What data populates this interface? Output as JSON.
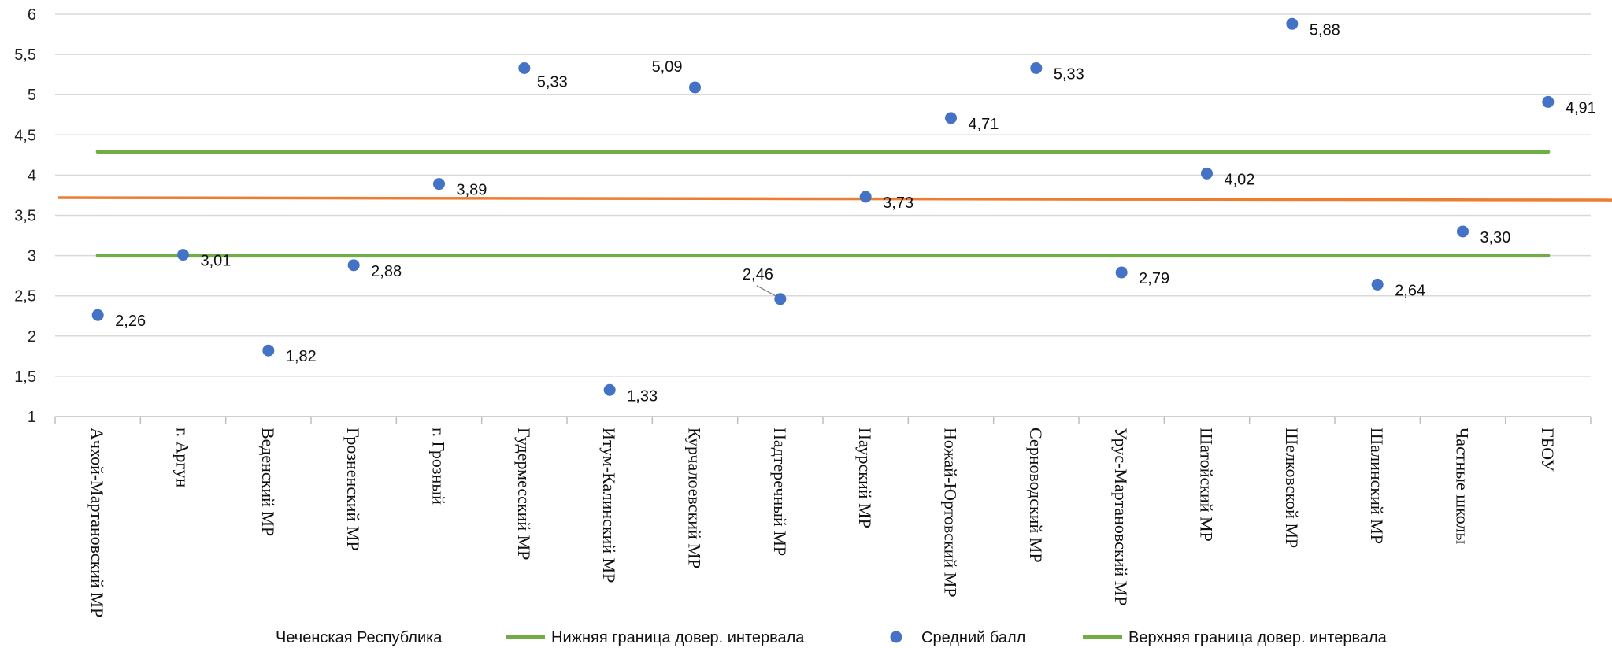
{
  "chart_data": {
    "type": "scatter",
    "categories": [
      "Ачхой-Мартановский МР",
      "г. Аргун",
      "Веденский МР",
      "Грозненский МР",
      "г. Грозный",
      "Гудермесский МР",
      "Итум-Калинский МР",
      "Курчалоевский МР",
      "Надтеречный МР",
      "Наурский МР",
      "Ножай-Юртовский МР",
      "Серноводский МР",
      "Урус-Мартановский МР",
      "Шатойский МР",
      "Шелковской МР",
      "Шалинский МР",
      "Частные школы",
      "ГБОУ"
    ],
    "series": [
      {
        "name": "Средний балл",
        "type": "scatter",
        "color": "#4472C4",
        "values": [
          2.26,
          3.01,
          1.82,
          2.88,
          3.89,
          5.33,
          1.33,
          5.09,
          2.46,
          3.73,
          4.71,
          5.33,
          2.79,
          4.02,
          5.88,
          2.64,
          3.3,
          4.91
        ],
        "labels": [
          "2,26",
          "3,01",
          "1,82",
          "2,88",
          "3,89",
          "5,33",
          "1,33",
          "5,09",
          "2,46",
          "3,73",
          "4,71",
          "5,33",
          "2,79",
          "4,02",
          "5,88",
          "2,64",
          "3,30",
          "4,91"
        ]
      },
      {
        "name": "Нижняя граница довер. интервала",
        "type": "line",
        "color": "#70AD47",
        "value": 3.0
      },
      {
        "name": "Верхняя граница довер. интервала",
        "type": "line",
        "color": "#70AD47",
        "value": 4.29
      },
      {
        "name": "Чеченская Республика",
        "type": "line",
        "color": "#ED7D31",
        "start_value": 3.72,
        "end_value": 3.69
      }
    ],
    "y_ticks": [
      "1",
      "1,5",
      "2",
      "2,5",
      "3",
      "3,5",
      "4",
      "4,5",
      "5",
      "5,5",
      "6"
    ],
    "ylim": [
      1,
      6
    ],
    "grid": true,
    "legend_position": "bottom"
  },
  "legend": [
    {
      "label": "Чеченская Республика",
      "marker": "none",
      "color": "#ED7D31"
    },
    {
      "label": "Нижняя граница довер. интервала",
      "marker": "line",
      "color": "#70AD47"
    },
    {
      "label": "Средний балл",
      "marker": "dot",
      "color": "#4472C4"
    },
    {
      "label": "Верхняя граница довер. интервала",
      "marker": "line",
      "color": "#70AD47"
    }
  ]
}
